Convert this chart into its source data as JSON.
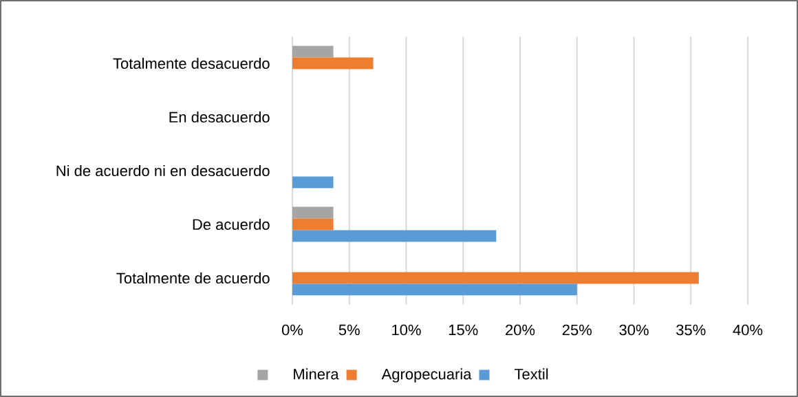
{
  "chart_data": {
    "type": "bar",
    "orientation": "horizontal",
    "categories": [
      "Totalmente desacuerdo",
      "En desacuerdo",
      "Ni de acuerdo ni en desacuerdo",
      "De acuerdo",
      "Totalmente de acuerdo"
    ],
    "series": [
      {
        "name": "Minera",
        "color": "#a5a5a5",
        "values": [
          3.6,
          0,
          0,
          3.6,
          0
        ]
      },
      {
        "name": "Agropecuaria",
        "color": "#ed7d31",
        "values": [
          7.1,
          0,
          0,
          3.6,
          35.7
        ]
      },
      {
        "name": "Textil",
        "color": "#5b9bd5",
        "values": [
          0,
          0,
          3.6,
          17.9,
          25
        ]
      }
    ],
    "xlim": [
      0,
      40
    ],
    "xticks": [
      {
        "value": 0,
        "label": "0%"
      },
      {
        "value": 5,
        "label": "5%"
      },
      {
        "value": 10,
        "label": "10%"
      },
      {
        "value": 15,
        "label": "15%"
      },
      {
        "value": 20,
        "label": "20%"
      },
      {
        "value": 25,
        "label": "25%"
      },
      {
        "value": 30,
        "label": "30%"
      },
      {
        "value": 35,
        "label": "35%"
      },
      {
        "value": 40,
        "label": "40%"
      }
    ],
    "grid": "x",
    "legend": "bottom"
  }
}
